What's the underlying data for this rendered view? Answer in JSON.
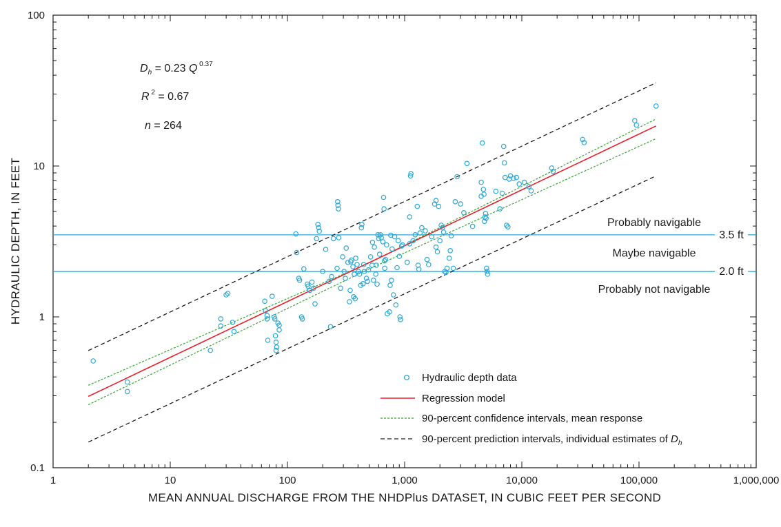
{
  "chart_data": {
    "type": "scatter",
    "x_scale": "log",
    "y_scale": "log",
    "xlim": [
      1,
      1000000
    ],
    "ylim": [
      0.1,
      100
    ],
    "xlabel": "MEAN ANNUAL DISCHARGE FROM THE NHDPlus DATASET, IN CUBIC FEET PER SECOND",
    "ylabel": "HYDRAULIC DEPTH, IN FEET",
    "x_ticks": [
      {
        "value": 1,
        "label": "1"
      },
      {
        "value": 10,
        "label": "10"
      },
      {
        "value": 100,
        "label": "100"
      },
      {
        "value": 1000,
        "label": "1,000"
      },
      {
        "value": 10000,
        "label": "10,000"
      },
      {
        "value": 100000,
        "label": "100,000"
      },
      {
        "value": 1000000,
        "label": "1,000,000"
      }
    ],
    "y_ticks": [
      {
        "value": 0.1,
        "label": "0.1"
      },
      {
        "value": 1,
        "label": "1"
      },
      {
        "value": 10,
        "label": "10"
      },
      {
        "value": 100,
        "label": "100"
      }
    ],
    "equation": {
      "dh_main": "D",
      "dh_sub": "h",
      "dh_rest": " = 0.23 ",
      "q_var": "Q",
      "q_exp": " 0.37",
      "r2_main": "R",
      "r2_sup": " 2",
      "r2_rest": " = 0.67",
      "n_var": "n",
      "n_rest": " = 264"
    },
    "thresholds": [
      {
        "value": 3.5,
        "label": "3.5 ft",
        "color": "#29a8d8"
      },
      {
        "value": 2.0,
        "label": "2.0 ft",
        "color": "#29a8d8"
      }
    ],
    "zones": {
      "upper": "Probably navigable",
      "middle": "Maybe navigable",
      "lower": "Probably not navigable"
    },
    "regression": {
      "a": 0.23,
      "b": 0.37,
      "x_range": [
        2,
        140000
      ],
      "color": "#e8202a"
    },
    "confidence_interval": {
      "lower": [
        [
          2,
          0.262
        ],
        [
          500,
          2.08
        ],
        [
          140000,
          15.2
        ]
      ],
      "upper": [
        [
          2,
          0.352
        ],
        [
          500,
          2.28
        ],
        [
          140000,
          20.5
        ]
      ],
      "color": "#3aa335"
    },
    "prediction_interval": {
      "lower": [
        [
          2,
          0.148
        ],
        [
          140000,
          8.6
        ]
      ],
      "upper": [
        [
          2,
          0.598
        ],
        [
          140000,
          35.6
        ]
      ],
      "color": "#1a1a1a"
    },
    "series": [
      {
        "name": "Hydraulic depth data",
        "marker_color": "#29a8d8",
        "points": [
          [
            2.2,
            0.51
          ],
          [
            4.3,
            0.37
          ],
          [
            4.3,
            0.32
          ],
          [
            22,
            0.6
          ],
          [
            27,
            0.97
          ],
          [
            27,
            0.87
          ],
          [
            30,
            1.4
          ],
          [
            31,
            1.43
          ],
          [
            34,
            0.92
          ],
          [
            35,
            0.8
          ],
          [
            64,
            1.27
          ],
          [
            65,
            1.1
          ],
          [
            67,
            1.02
          ],
          [
            67,
            0.97
          ],
          [
            68,
            0.7
          ],
          [
            74,
            1.37
          ],
          [
            77,
            1.0
          ],
          [
            78,
            0.97
          ],
          [
            79,
            0.75
          ],
          [
            80,
            0.68
          ],
          [
            80,
            0.6
          ],
          [
            81,
            0.63
          ],
          [
            83,
            0.91
          ],
          [
            85,
            0.88
          ],
          [
            85,
            0.82
          ],
          [
            118,
            3.55
          ],
          [
            120,
            2.67
          ],
          [
            125,
            1.8
          ],
          [
            127,
            1.75
          ],
          [
            132,
            1.0
          ],
          [
            134,
            0.97
          ],
          [
            138,
            2.08
          ],
          [
            148,
            1.65
          ],
          [
            150,
            1.6
          ],
          [
            155,
            1.5
          ],
          [
            162,
            1.7
          ],
          [
            167,
            1.55
          ],
          [
            172,
            1.22
          ],
          [
            177,
            3.3
          ],
          [
            182,
            4.1
          ],
          [
            185,
            3.9
          ],
          [
            187,
            3.7
          ],
          [
            200,
            2.0
          ],
          [
            212,
            2.8
          ],
          [
            227,
            1.72
          ],
          [
            233,
            0.86
          ],
          [
            238,
            1.85
          ],
          [
            247,
            3.3
          ],
          [
            265,
            2.1
          ],
          [
            268,
            5.8
          ],
          [
            270,
            5.5
          ],
          [
            272,
            5.2
          ],
          [
            274,
            3.35
          ],
          [
            284,
            1.55
          ],
          [
            296,
            2.5
          ],
          [
            304,
            2.0
          ],
          [
            312,
            1.8
          ],
          [
            317,
            2.86
          ],
          [
            328,
            2.3
          ],
          [
            338,
            1.26
          ],
          [
            343,
            1.5
          ],
          [
            347,
            2.32
          ],
          [
            352,
            2.38
          ],
          [
            362,
            2.15
          ],
          [
            367,
            1.36
          ],
          [
            372,
            1.92
          ],
          [
            378,
            1.32
          ],
          [
            383,
            2.45
          ],
          [
            393,
            2.22
          ],
          [
            403,
            2.0
          ],
          [
            412,
            1.92
          ],
          [
            422,
            1.62
          ],
          [
            428,
            3.9
          ],
          [
            432,
            4.1
          ],
          [
            442,
            1.66
          ],
          [
            447,
            2.22
          ],
          [
            452,
            2.0
          ],
          [
            472,
            1.8
          ],
          [
            482,
            1.72
          ],
          [
            492,
            2.05
          ],
          [
            512,
            2.5
          ],
          [
            527,
            2.2
          ],
          [
            532,
            3.12
          ],
          [
            542,
            1.75
          ],
          [
            552,
            2.9
          ],
          [
            567,
            1.92
          ],
          [
            572,
            2.2
          ],
          [
            582,
            1.65
          ],
          [
            592,
            3.5
          ],
          [
            602,
            3.3
          ],
          [
            612,
            2.6
          ],
          [
            622,
            3.5
          ],
          [
            632,
            3.35
          ],
          [
            652,
            3.15
          ],
          [
            662,
            6.2
          ],
          [
            667,
            5.2
          ],
          [
            672,
            2.35
          ],
          [
            677,
            2.1
          ],
          [
            687,
            2.4
          ],
          [
            702,
            3.0
          ],
          [
            712,
            1.05
          ],
          [
            742,
            1.08
          ],
          [
            752,
            1.62
          ],
          [
            762,
            3.48
          ],
          [
            772,
            1.75
          ],
          [
            782,
            2.82
          ],
          [
            802,
            1.4
          ],
          [
            822,
            3.4
          ],
          [
            842,
            1.2
          ],
          [
            862,
            2.12
          ],
          [
            882,
            3.2
          ],
          [
            902,
            2.52
          ],
          [
            912,
            1.0
          ],
          [
            922,
            0.96
          ],
          [
            942,
            2.95
          ],
          [
            962,
            3.0
          ],
          [
            1052,
            2.3
          ],
          [
            1102,
            3.05
          ],
          [
            1102,
            4.6
          ],
          [
            1122,
            8.6
          ],
          [
            1132,
            8.9
          ],
          [
            1182,
            3.2
          ],
          [
            1232,
            3.5
          ],
          [
            1282,
            5.4
          ],
          [
            1302,
            2.2
          ],
          [
            1322,
            2.07
          ],
          [
            1352,
            3.6
          ],
          [
            1402,
            3.9
          ],
          [
            1502,
            3.72
          ],
          [
            1552,
            2.4
          ],
          [
            1602,
            2.22
          ],
          [
            1702,
            3.4
          ],
          [
            1802,
            5.6
          ],
          [
            1852,
            2.9
          ],
          [
            1852,
            5.9
          ],
          [
            1902,
            2.7
          ],
          [
            1952,
            5.4
          ],
          [
            2002,
            3.2
          ],
          [
            2052,
            4.05
          ],
          [
            2102,
            3.9
          ],
          [
            2152,
            3.65
          ],
          [
            2202,
            2.0
          ],
          [
            2252,
            1.97
          ],
          [
            2302,
            2.1
          ],
          [
            2402,
            2.45
          ],
          [
            2452,
            2.75
          ],
          [
            2502,
            3.45
          ],
          [
            2602,
            2.1
          ],
          [
            2702,
            5.8
          ],
          [
            2802,
            8.5
          ],
          [
            3002,
            5.6
          ],
          [
            3202,
            4.9
          ],
          [
            3402,
            10.4
          ],
          [
            3802,
            3.98
          ],
          [
            4502,
            7.8
          ],
          [
            4502,
            6.3
          ],
          [
            4602,
            14.2
          ],
          [
            4702,
            7.0
          ],
          [
            4752,
            6.5
          ],
          [
            4802,
            4.3
          ],
          [
            4852,
            4.6
          ],
          [
            4902,
            4.85
          ],
          [
            4952,
            4.5
          ],
          [
            5002,
            2.1
          ],
          [
            5052,
            2.0
          ],
          [
            5102,
            1.92
          ],
          [
            6002,
            6.8
          ],
          [
            6502,
            5.2
          ],
          [
            6802,
            6.6
          ],
          [
            7002,
            13.5
          ],
          [
            7102,
            10.5
          ],
          [
            7202,
            8.4
          ],
          [
            7402,
            4.05
          ],
          [
            7602,
            3.95
          ],
          [
            7802,
            8.2
          ],
          [
            8002,
            8.6
          ],
          [
            8502,
            8.3
          ],
          [
            9002,
            8.4
          ],
          [
            9502,
            7.6
          ],
          [
            10502,
            7.8
          ],
          [
            11502,
            7.3
          ],
          [
            12002,
            6.85
          ],
          [
            18002,
            9.7
          ],
          [
            18502,
            9.2
          ],
          [
            33002,
            15.0
          ],
          [
            34002,
            14.3
          ],
          [
            92002,
            20.0
          ],
          [
            95002,
            18.7
          ],
          [
            140000,
            25.0
          ]
        ]
      },
      {
        "name": "Regression model",
        "color": "#e8202a"
      },
      {
        "name": "90-percent confidence intervals, mean response",
        "color": "#3aa335"
      },
      {
        "name": "90-percent prediction intervals, individual estimates of ",
        "name_var": "D",
        "name_sub": "h",
        "color": "#1a1a1a"
      }
    ],
    "legend_position": "bottom-center",
    "grid": false
  }
}
